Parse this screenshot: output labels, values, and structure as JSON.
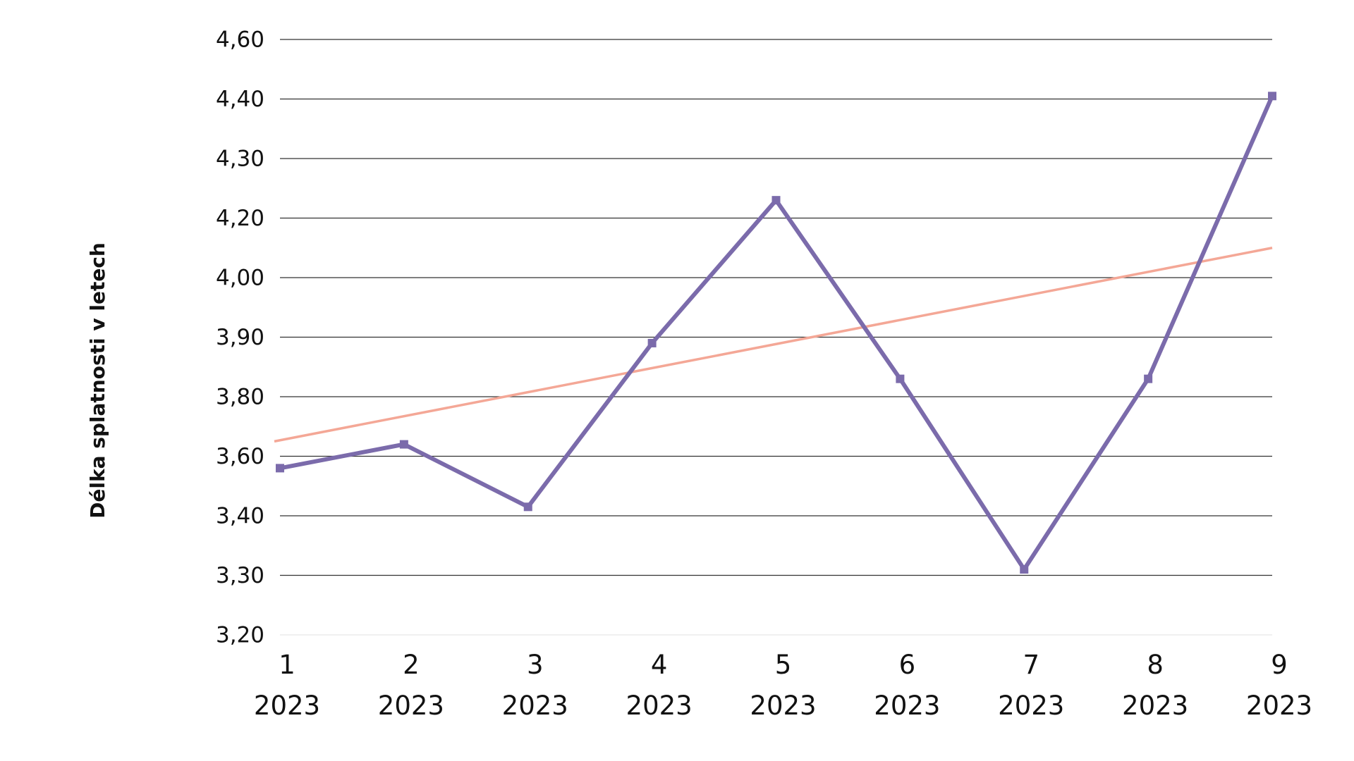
{
  "chart_data": {
    "type": "line",
    "y_label": "Délka splatnosti v letech",
    "categories": [
      [
        "1",
        "2023"
      ],
      [
        "2",
        "2023"
      ],
      [
        "3",
        "2023"
      ],
      [
        "4",
        "2023"
      ],
      [
        "5",
        "2023"
      ],
      [
        "6",
        "2023"
      ],
      [
        "7",
        "2023"
      ],
      [
        "8",
        "2023"
      ],
      [
        "9",
        "2023"
      ]
    ],
    "series": [
      {
        "color": "#7b6bab",
        "values": [
          3.56,
          3.64,
          3.43,
          3.89,
          4.23,
          3.83,
          3.31,
          3.83,
          4.41
        ]
      }
    ],
    "trend": {
      "color": "#f4a796",
      "values": [
        3.65,
        4.1
      ]
    },
    "ylim": [
      3.2,
      4.6
    ],
    "yticks": [
      {
        "value": 3.2,
        "label": "3,20"
      },
      {
        "value": 3.3,
        "label": "3,30"
      },
      {
        "value": 3.4,
        "label": "3,40"
      },
      {
        "value": 3.6,
        "label": "3,60"
      },
      {
        "value": 3.8,
        "label": "3,80"
      },
      {
        "value": 3.9,
        "label": "3,90"
      },
      {
        "value": 4.0,
        "label": "4,00"
      },
      {
        "value": 4.2,
        "label": "4,20"
      },
      {
        "value": 4.3,
        "label": "4,30"
      },
      {
        "value": 4.4,
        "label": "4,40"
      },
      {
        "value": 4.6,
        "label": "4,60"
      }
    ],
    "grid": true
  }
}
